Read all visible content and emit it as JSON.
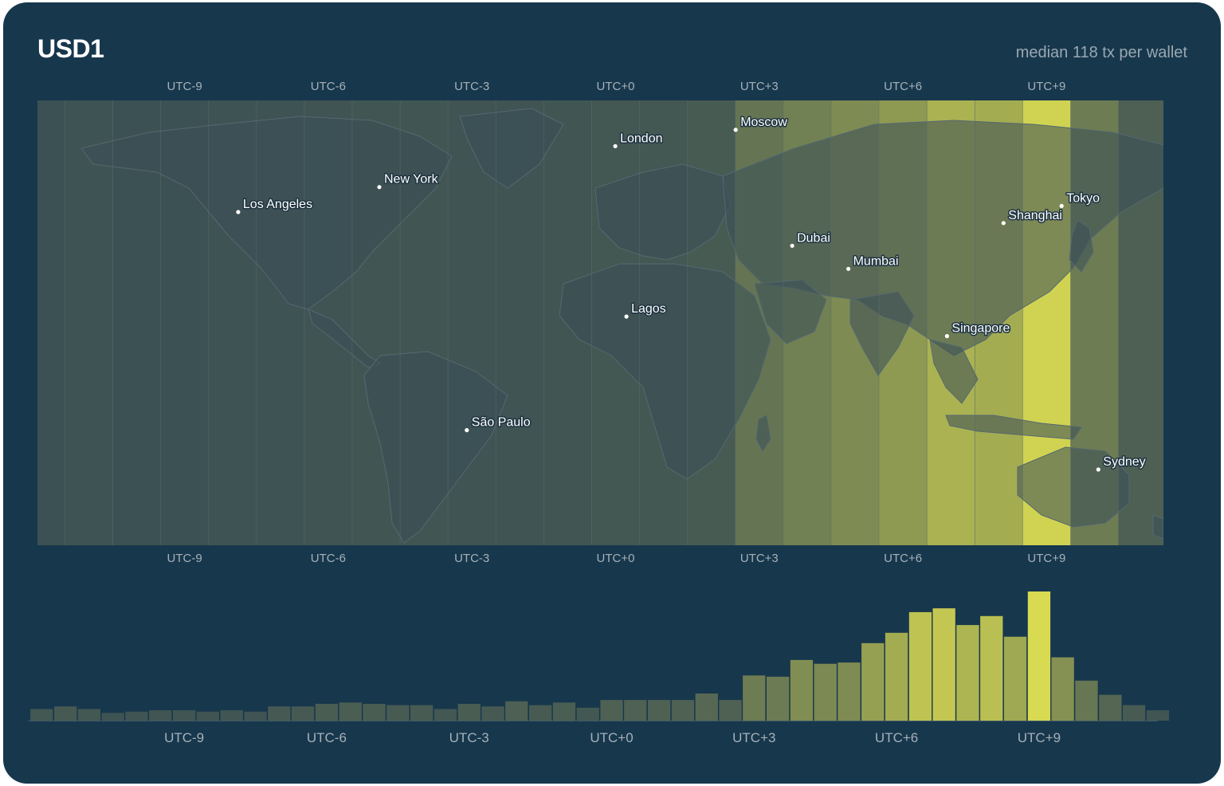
{
  "header": {
    "title": "USD1",
    "subtitle": "median 118 tx per wallet"
  },
  "colors": {
    "background": "#17374c",
    "map_base": "#2c4650",
    "low": "#344a53",
    "high": "#d8da52"
  },
  "map": {
    "timezone_labels_top": [
      "UTC-9",
      "UTC-6",
      "UTC-3",
      "UTC+0",
      "UTC+3",
      "UTC+6",
      "UTC+9"
    ],
    "timezone_labels_bottom": [
      "UTC-9",
      "UTC-6",
      "UTC-3",
      "UTC+0",
      "UTC+3",
      "UTC+6",
      "UTC+9"
    ],
    "cities": [
      {
        "name": "Los Angeles",
        "lon": -118.2,
        "lat": 34.1
      },
      {
        "name": "New York",
        "lon": -74.0,
        "lat": 40.7
      },
      {
        "name": "London",
        "lon": -0.1,
        "lat": 51.5
      },
      {
        "name": "Moscow",
        "lon": 37.6,
        "lat": 55.8
      },
      {
        "name": "Dubai",
        "lon": 55.3,
        "lat": 25.2
      },
      {
        "name": "Mumbai",
        "lon": 72.9,
        "lat": 19.1
      },
      {
        "name": "Lagos",
        "lon": 3.4,
        "lat": 6.5
      },
      {
        "name": "Singapore",
        "lon": 103.8,
        "lat": 1.35
      },
      {
        "name": "Shanghai",
        "lon": 121.5,
        "lat": 31.2
      },
      {
        "name": "Tokyo",
        "lon": 139.7,
        "lat": 35.7
      },
      {
        "name": "São Paulo",
        "lon": -46.6,
        "lat": -23.5
      },
      {
        "name": "Sydney",
        "lon": 151.2,
        "lat": -33.9
      }
    ],
    "zone_intensity": [
      {
        "offset": -12,
        "value": 0.05
      },
      {
        "offset": -11,
        "value": 0.06
      },
      {
        "offset": -10,
        "value": 0.05
      },
      {
        "offset": -9,
        "value": 0.05
      },
      {
        "offset": -8,
        "value": 0.06
      },
      {
        "offset": -7,
        "value": 0.06
      },
      {
        "offset": -6,
        "value": 0.07
      },
      {
        "offset": -5,
        "value": 0.08
      },
      {
        "offset": -4,
        "value": 0.08
      },
      {
        "offset": -3,
        "value": 0.07
      },
      {
        "offset": -2,
        "value": 0.07
      },
      {
        "offset": -1,
        "value": 0.08
      },
      {
        "offset": 0,
        "value": 0.09
      },
      {
        "offset": 1,
        "value": 0.1
      },
      {
        "offset": 2,
        "value": 0.12
      },
      {
        "offset": 3,
        "value": 0.3
      },
      {
        "offset": 4,
        "value": 0.38
      },
      {
        "offset": 5,
        "value": 0.45
      },
      {
        "offset": 6,
        "value": 0.55
      },
      {
        "offset": 7,
        "value": 0.72
      },
      {
        "offset": 8,
        "value": 0.68
      },
      {
        "offset": 9,
        "value": 0.95
      },
      {
        "offset": 10,
        "value": 0.35
      },
      {
        "offset": 11,
        "value": 0.15
      }
    ]
  },
  "chart_data": {
    "type": "bar",
    "title": "USD1",
    "subtitle": "median 118 tx per wallet",
    "x_tick_labels": [
      "UTC-9",
      "UTC-6",
      "UTC-3",
      "UTC+0",
      "UTC+3",
      "UTC+6",
      "UTC+9"
    ],
    "x_tick_offsets": [
      -9,
      -6,
      -3,
      0,
      3,
      6,
      9
    ],
    "x_range": [
      -12.5,
      11.5
    ],
    "bin_width_hours": 0.5,
    "x": [
      -12,
      -11.5,
      -11,
      -10.5,
      -10,
      -9.5,
      -9,
      -8.5,
      -8,
      -7.5,
      -7,
      -6.5,
      -6,
      -5.5,
      -5,
      -4.5,
      -4,
      -3.5,
      -3,
      -2.5,
      -2,
      -1.5,
      -1,
      -0.5,
      0,
      0.5,
      1,
      1.5,
      2,
      2.5,
      3,
      3.5,
      4,
      4.5,
      5,
      5.5,
      6,
      6.5,
      7,
      7.5,
      8,
      8.5,
      9,
      9.5,
      10,
      10.5,
      11,
      11.5
    ],
    "values": [
      9,
      11,
      9,
      6,
      7,
      8,
      8,
      7,
      8,
      7,
      11,
      11,
      13,
      14,
      13,
      12,
      12,
      9,
      13,
      11,
      15,
      12,
      14,
      10,
      16,
      16,
      16,
      16,
      21,
      16,
      35,
      34,
      47,
      44,
      45,
      60,
      68,
      84,
      87,
      74,
      81,
      65,
      100,
      49,
      31,
      20,
      12,
      8
    ],
    "ylim": [
      0,
      100
    ],
    "grid": false,
    "legend": "none"
  }
}
